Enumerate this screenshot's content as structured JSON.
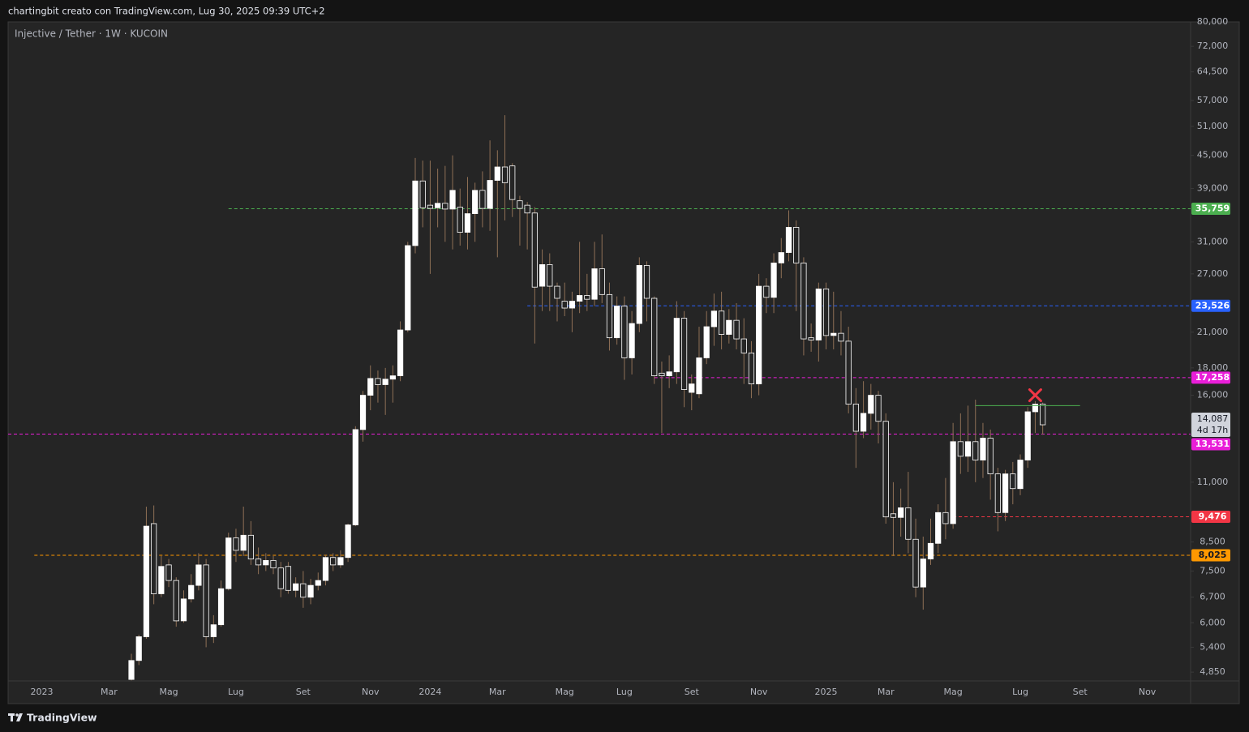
{
  "header": {
    "text": "chartingbit creato con TradingView.com, Lug 30, 2025 09:39 UTC+2"
  },
  "footer": {
    "brand": "TradingView"
  },
  "chart_data": {
    "type": "candlestick",
    "title": "Injective / Tether · 1W · KUCOIN",
    "log_scale": true,
    "up_color": "#ffffff",
    "down_color": "#262626",
    "border_color": "#ffffff",
    "wick_color": "#8f7056",
    "ylim": [
      4670,
      80000
    ],
    "yticks": [
      {
        "value": 80000,
        "label": "80,000"
      },
      {
        "value": 72000,
        "label": "72,000"
      },
      {
        "value": 64500,
        "label": "64,500"
      },
      {
        "value": 57000,
        "label": "57,000"
      },
      {
        "value": 51000,
        "label": "51,000"
      },
      {
        "value": 45000,
        "label": "45,000"
      },
      {
        "value": 39000,
        "label": "39,000"
      },
      {
        "value": 31000,
        "label": "31,000"
      },
      {
        "value": 27000,
        "label": "27,000"
      },
      {
        "value": 21000,
        "label": "21,000"
      },
      {
        "value": 18000,
        "label": "18,000"
      },
      {
        "value": 16000,
        "label": "16,000"
      },
      {
        "value": 11000,
        "label": "11,000"
      },
      {
        "value": 8500,
        "label": "8,500"
      },
      {
        "value": 7500,
        "label": "7,500"
      },
      {
        "value": 6700,
        "label": "6,700"
      },
      {
        "value": 6000,
        "label": "6,000"
      },
      {
        "value": 5400,
        "label": "5,400"
      },
      {
        "value": 4850,
        "label": "4,850"
      }
    ],
    "categories": [
      "2023",
      null,
      null,
      null,
      null,
      null,
      null,
      null,
      null,
      "Mar",
      null,
      null,
      null,
      null,
      null,
      null,
      null,
      "Mag",
      null,
      null,
      null,
      null,
      null,
      null,
      null,
      null,
      "Lug",
      null,
      null,
      null,
      null,
      null,
      null,
      null,
      null,
      "Set",
      null,
      null,
      null,
      null,
      null,
      null,
      null,
      null,
      "Nov",
      null,
      null,
      null,
      null,
      null,
      null,
      null,
      "2024",
      null,
      null,
      null,
      null,
      null,
      null,
      null,
      null,
      "Mar",
      null,
      null,
      null,
      null,
      null,
      null,
      null,
      null,
      "Mag",
      null,
      null,
      null,
      null,
      null,
      null,
      null,
      "Lug",
      null,
      null,
      null,
      null,
      null,
      null,
      null,
      null,
      "Set",
      null,
      null,
      null,
      null,
      null,
      null,
      null,
      null,
      "Nov",
      null,
      null,
      null,
      null,
      null,
      null,
      null,
      null,
      "2025",
      null,
      null,
      null,
      null,
      null,
      null,
      null,
      "Mar",
      null,
      null,
      null,
      null,
      null,
      null,
      null,
      null,
      "Mag",
      null,
      null,
      null,
      null,
      null,
      null,
      null,
      null,
      "Lug",
      null,
      null,
      null,
      null,
      null,
      null,
      null,
      "Set",
      null,
      null,
      null,
      null,
      null,
      null,
      null,
      null,
      "Nov",
      null,
      null,
      null,
      null,
      null
    ],
    "open": [
      null,
      null,
      null,
      null,
      null,
      null,
      null,
      null,
      null,
      null,
      null,
      null,
      4700,
      5100,
      5650,
      9200,
      6800,
      7700,
      7200,
      6050,
      6650,
      7050,
      7700,
      5650,
      5950,
      6950,
      8650,
      8200,
      8750,
      7900,
      7700,
      7850,
      7600,
      7650,
      6900,
      7100,
      6700,
      7050,
      7200,
      7950,
      7700,
      7950,
      9150,
      13800,
      16000,
      17200,
      16750,
      17150,
      17400,
      21200,
      30500,
      40300,
      36300,
      35900,
      36600,
      35700,
      36000,
      32300,
      35000,
      38700,
      35800,
      40400,
      42800,
      43000,
      37000,
      36300,
      35100,
      25600,
      28100,
      25600,
      24000,
      23300,
      24000,
      24600,
      24200,
      27600,
      24700,
      20500,
      23500,
      18800,
      21800,
      28000,
      24300,
      17600,
      17400,
      17700,
      22300,
      16200,
      16100,
      18800,
      21500,
      23000,
      20800,
      22100,
      20400,
      19200,
      16800,
      25600,
      24400,
      28300,
      29600,
      33000,
      28300,
      20500,
      20300,
      25300,
      20700,
      20900,
      20200,
      15400,
      13700,
      14800,
      16000,
      14300,
      9600,
      9450,
      9850,
      8600,
      7000,
      7900,
      8450,
      9650,
      9200,
      13100,
      12300,
      13100,
      12100,
      13300,
      11400,
      9650,
      11400,
      10700,
      12100,
      14900,
      15400,
      null,
      null,
      null,
      null,
      null,
      null,
      null,
      null,
      null,
      null,
      null,
      null,
      null,
      null,
      null,
      null,
      null,
      null,
      null
    ],
    "high": [
      null,
      null,
      null,
      null,
      null,
      null,
      null,
      null,
      null,
      null,
      null,
      null,
      5250,
      5700,
      9900,
      9950,
      8000,
      7900,
      7300,
      6900,
      7400,
      8100,
      7900,
      6200,
      7200,
      8850,
      9000,
      9900,
      9300,
      8300,
      8100,
      8000,
      7800,
      7800,
      7300,
      7500,
      7250,
      7450,
      8050,
      8100,
      8200,
      9200,
      14000,
      16300,
      18200,
      17800,
      18000,
      18200,
      22000,
      31000,
      44500,
      44000,
      44000,
      42500,
      43000,
      45000,
      39000,
      41000,
      40000,
      42000,
      48000,
      46000,
      53500,
      43500,
      37800,
      36800,
      36000,
      30000,
      29500,
      26000,
      26000,
      25000,
      31000,
      27000,
      31000,
      32000,
      26000,
      24500,
      24500,
      23000,
      29000,
      28500,
      24500,
      18500,
      19000,
      24000,
      23000,
      17500,
      21500,
      23000,
      24800,
      25000,
      23200,
      23800,
      22300,
      20200,
      27000,
      26500,
      29500,
      31500,
      35500,
      34000,
      29000,
      21800,
      26000,
      26000,
      25000,
      23000,
      21500,
      16500,
      17000,
      16800,
      16300,
      14800,
      11000,
      10700,
      11500,
      9400,
      8700,
      9400,
      10000,
      11200,
      14200,
      14800,
      15300,
      15700,
      14200,
      13800,
      11700,
      11600,
      12000,
      12400,
      15200,
      15600,
      15500,
      null,
      null,
      null,
      null,
      null,
      null,
      null,
      null,
      null,
      null,
      null,
      null,
      null,
      null,
      null,
      null,
      null,
      null,
      null
    ],
    "low": [
      null,
      null,
      null,
      null,
      null,
      null,
      null,
      null,
      null,
      null,
      null,
      null,
      4680,
      5000,
      5600,
      6500,
      6700,
      7000,
      5900,
      6000,
      6550,
      6900,
      5400,
      5500,
      5900,
      6900,
      7800,
      8000,
      7700,
      7400,
      7500,
      7400,
      6700,
      6800,
      6700,
      6400,
      6500,
      6900,
      7050,
      7500,
      7600,
      7800,
      9100,
      13100,
      15000,
      15500,
      14700,
      15500,
      17000,
      21000,
      29500,
      33000,
      27000,
      33000,
      31000,
      30000,
      30500,
      30000,
      31000,
      33000,
      32500,
      29000,
      34000,
      34500,
      30500,
      30000,
      20000,
      23000,
      23000,
      22000,
      22500,
      21000,
      22800,
      23000,
      23500,
      23800,
      19400,
      19900,
      17100,
      17500,
      21000,
      22000,
      16800,
      13600,
      16500,
      16800,
      15200,
      15000,
      15800,
      18300,
      19800,
      19500,
      20000,
      19500,
      16800,
      15800,
      16000,
      22800,
      22800,
      26500,
      28500,
      23000,
      19000,
      19300,
      18500,
      19500,
      19500,
      19000,
      14800,
      11700,
      13300,
      13800,
      13000,
      9200,
      8000,
      8700,
      8100,
      6700,
      6350,
      7700,
      8100,
      8600,
      9000,
      11400,
      11500,
      11000,
      11200,
      10200,
      8900,
      9300,
      10000,
      10400,
      11700,
      13600,
      13500,
      null,
      null,
      null,
      null,
      null,
      null,
      null,
      null,
      null,
      null,
      null,
      null,
      null,
      null,
      null,
      null,
      null,
      null,
      null
    ],
    "close": [
      null,
      null,
      null,
      null,
      null,
      null,
      null,
      null,
      null,
      null,
      null,
      null,
      5100,
      5650,
      9100,
      6800,
      7650,
      7200,
      6050,
      6650,
      7050,
      7700,
      5650,
      5950,
      6950,
      8650,
      8200,
      8750,
      7900,
      7700,
      7850,
      7600,
      6950,
      6900,
      7100,
      6700,
      7050,
      7200,
      7950,
      7700,
      7950,
      9150,
      13800,
      16000,
      17200,
      16750,
      17150,
      17400,
      21200,
      30500,
      40300,
      35900,
      35800,
      36600,
      35700,
      38700,
      32300,
      35000,
      38700,
      35800,
      40400,
      42800,
      40000,
      37200,
      35800,
      35100,
      25500,
      28100,
      25600,
      24300,
      23300,
      24000,
      24600,
      24200,
      27600,
      24700,
      20500,
      23500,
      18800,
      21800,
      28000,
      24300,
      17400,
      17400,
      17700,
      22300,
      16400,
      16800,
      18800,
      21500,
      23000,
      20800,
      22100,
      20400,
      19200,
      16800,
      25600,
      24400,
      28300,
      29600,
      33000,
      28300,
      20400,
      20300,
      25300,
      20700,
      20900,
      20200,
      15400,
      13700,
      14800,
      16000,
      14300,
      9470,
      9450,
      9850,
      8600,
      7000,
      7900,
      8450,
      9650,
      9200,
      13100,
      12300,
      13100,
      12100,
      13300,
      11400,
      9650,
      11400,
      10700,
      12100,
      14900,
      15400,
      14087,
      null,
      null,
      null,
      null,
      null,
      null,
      null,
      null,
      null,
      null,
      null,
      null,
      null,
      null,
      null,
      null,
      null,
      null,
      null
    ],
    "levels": [
      {
        "value": 35759,
        "label": "35,759",
        "color": "#4caf50",
        "start": 25
      },
      {
        "value": 23526,
        "label": "23,526",
        "color": "#2962ff",
        "start": 65
      },
      {
        "value": 17258,
        "label": "17,258",
        "color": "#e91ed8",
        "start": 82
      },
      {
        "value": 13531,
        "label": "13,531",
        "color": "#e91ed8"
      },
      {
        "value": 9476,
        "label": "9,476",
        "color": "#f23645",
        "start": 122
      },
      {
        "value": 8025,
        "label": "8,025",
        "color": "#ff9800",
        "start": -1
      }
    ],
    "current_price": {
      "value": 14087,
      "label": "14,087",
      "countdown": "4d 17h"
    },
    "annotations": {
      "resistance": {
        "value": 15300,
        "from": 125,
        "to": 139,
        "color": "#4caf50"
      },
      "marker": {
        "x": 133,
        "value": 16000,
        "color": "#f23645"
      }
    }
  }
}
